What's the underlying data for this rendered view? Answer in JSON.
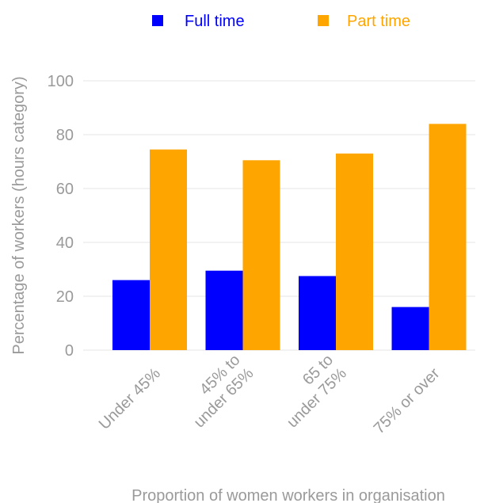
{
  "chart_data": {
    "type": "bar",
    "categories": [
      [
        "Under 45%"
      ],
      [
        "45% to",
        "under 65%"
      ],
      [
        "65 to",
        "under 75%"
      ],
      [
        "75% or over"
      ]
    ],
    "series": [
      {
        "name": "Full time",
        "color": "#0000ff",
        "values": [
          26,
          29.5,
          27.5,
          16
        ]
      },
      {
        "name": "Part time",
        "color": "#ffa500",
        "values": [
          74.5,
          70.5,
          73,
          84
        ]
      }
    ],
    "xlabel": "Proportion of women workers in organisation",
    "ylabel": "Percentage of workers (hours category)",
    "ylim": [
      0,
      100
    ],
    "yticks": [
      0,
      20,
      40,
      60,
      80,
      100
    ],
    "grid": true,
    "legend": "top"
  }
}
